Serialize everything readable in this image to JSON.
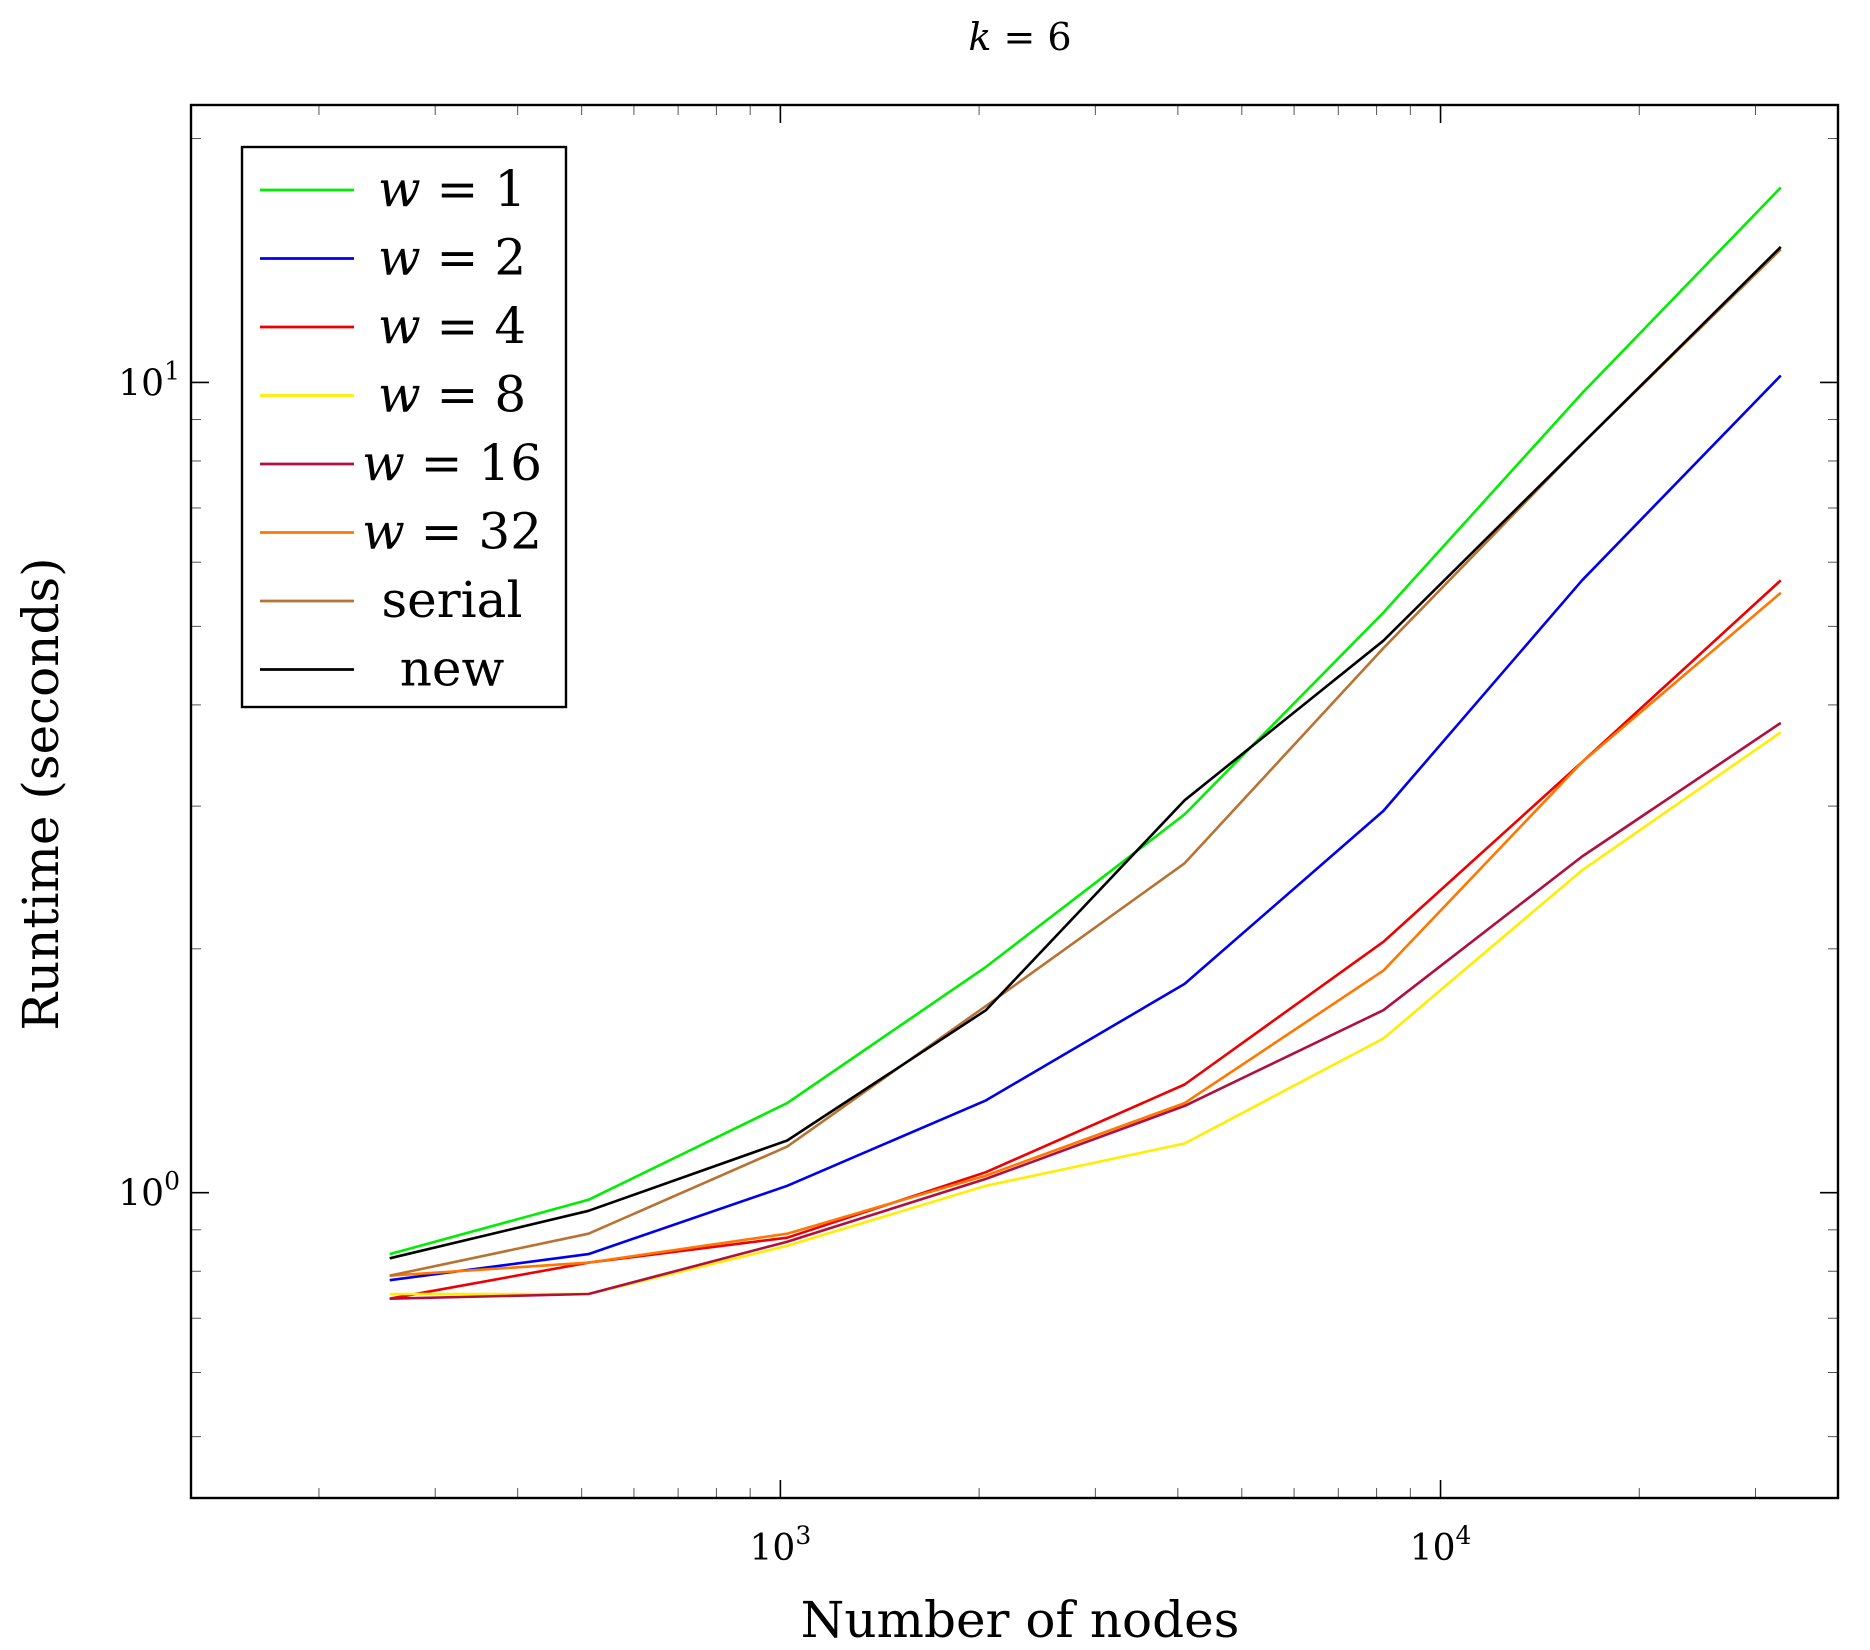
{
  "chart_data": {
    "type": "line",
    "title": "k = 6",
    "title_var": "k",
    "title_rest": " = 6",
    "xlabel": "Number of nodes",
    "ylabel": "Runtime (seconds)",
    "xscale": "log",
    "yscale": "log",
    "xlim": [
      128,
      40000
    ],
    "ylim": [
      0.42,
      22
    ],
    "legend_position": "top-left",
    "x": [
      256,
      512,
      1024,
      2048,
      4096,
      8192,
      16384,
      32768
    ],
    "series": [
      {
        "name": "w = 1",
        "var": "w",
        "rest": " = 1",
        "color": "#00ee00",
        "values": [
          0.84,
          0.98,
          1.29,
          1.9,
          2.93,
          5.2,
          9.7,
          17.4
        ]
      },
      {
        "name": "w = 2",
        "var": "w",
        "rest": " = 2",
        "color": "#0000ee",
        "values": [
          0.78,
          0.84,
          1.02,
          1.3,
          1.81,
          2.96,
          5.7,
          10.2
        ]
      },
      {
        "name": "w = 4",
        "var": "w",
        "rest": " = 4",
        "color": "#ee0000",
        "values": [
          0.74,
          0.82,
          0.88,
          1.06,
          1.36,
          2.04,
          3.4,
          5.7
        ]
      },
      {
        "name": "w = 8",
        "var": "w",
        "rest": " = 8",
        "color": "#ffee00",
        "values": [
          0.75,
          0.75,
          0.86,
          1.02,
          1.15,
          1.55,
          2.5,
          3.7
        ]
      },
      {
        "name": "w = 16",
        "var": "w",
        "rest": " = 16",
        "color": "#b01040",
        "values": [
          0.74,
          0.75,
          0.87,
          1.04,
          1.28,
          1.68,
          2.6,
          3.8
        ]
      },
      {
        "name": "w = 32",
        "var": "w",
        "rest": " = 32",
        "color": "#ff7700",
        "values": [
          0.79,
          0.82,
          0.89,
          1.05,
          1.29,
          1.88,
          3.4,
          5.5
        ]
      },
      {
        "name": "serial",
        "color": "#b87333",
        "values": [
          0.79,
          0.89,
          1.14,
          1.7,
          2.55,
          4.7,
          8.4,
          14.6
        ]
      },
      {
        "name": "new",
        "color": "#000000",
        "values": [
          0.83,
          0.95,
          1.16,
          1.68,
          3.05,
          4.8,
          8.4,
          14.7
        ]
      }
    ],
    "x_ticks": [
      {
        "value": 1000,
        "base": "10",
        "exp": "3"
      },
      {
        "value": 10000,
        "base": "10",
        "exp": "4"
      }
    ],
    "y_ticks": [
      {
        "value": 1,
        "base": "10",
        "exp": "0"
      },
      {
        "value": 10,
        "base": "10",
        "exp": "1"
      }
    ]
  }
}
